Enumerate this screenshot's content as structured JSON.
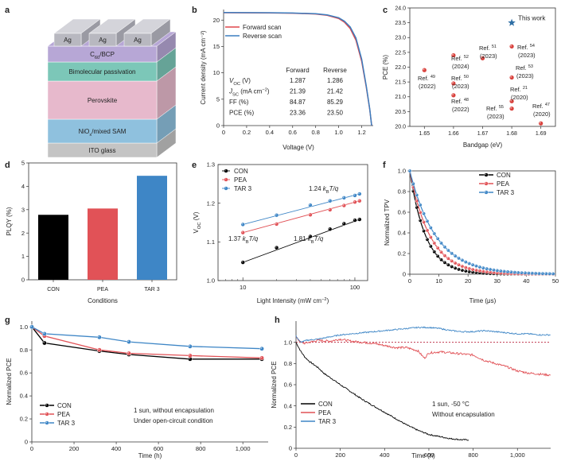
{
  "panel_letters": [
    "a",
    "b",
    "c",
    "d",
    "e",
    "f",
    "g",
    "h"
  ],
  "device_stack": {
    "layers": [
      "Ag",
      "C60/BCP",
      "Bimolecular passivation",
      "Perovskite",
      "NiOx/mixed SAM",
      "ITO glass"
    ],
    "electrodes": [
      "Ag",
      "Ag",
      "Ag"
    ],
    "colors": {
      "ag": "#b8b8c0",
      "c60": "#b7a7d6",
      "bimol": "#7cc7b8",
      "perov": "#e7b9cc",
      "nio": "#8fc1de",
      "ito": "#c4c4c4"
    }
  },
  "chart_data": [
    {
      "panel": "b",
      "type": "line",
      "xlabel": "Voltage (V)",
      "ylabel": "Current density (mA cm⁻²)",
      "xlim": [
        0,
        1.3
      ],
      "ylim": [
        0,
        22
      ],
      "xticks": [
        "0",
        "0.2",
        "0.4",
        "0.6",
        "0.8",
        "1.0",
        "1.2"
      ],
      "yticks": [
        "0",
        "5",
        "10",
        "15",
        "20"
      ],
      "legend_position": "top-right",
      "series": [
        {
          "name": "Forward scan",
          "color": "#e0474c",
          "x": [
            0,
            0.2,
            0.4,
            0.6,
            0.8,
            0.9,
            1.0,
            1.05,
            1.1,
            1.15,
            1.2,
            1.24,
            1.27,
            1.287
          ],
          "y": [
            21.39,
            21.38,
            21.35,
            21.3,
            21.15,
            20.9,
            20.3,
            19.6,
            18.4,
            16.2,
            12.2,
            7.3,
            3.0,
            0
          ]
        },
        {
          "name": "Reverse scan",
          "color": "#3b7fc0",
          "x": [
            0,
            0.2,
            0.4,
            0.6,
            0.8,
            0.9,
            1.0,
            1.05,
            1.1,
            1.15,
            1.2,
            1.24,
            1.27,
            1.286
          ],
          "y": [
            21.42,
            21.41,
            21.39,
            21.34,
            21.2,
            20.98,
            20.45,
            19.8,
            18.7,
            16.6,
            12.6,
            7.5,
            3.1,
            0
          ]
        }
      ],
      "table": {
        "headers": [
          "",
          "Forward",
          "Reverse"
        ],
        "rows": [
          [
            "V_OC (V)",
            "1.287",
            "1.286"
          ],
          [
            "J_SC (mA cm⁻²)",
            "21.39",
            "21.42"
          ],
          [
            "FF (%)",
            "84.87",
            "85.29"
          ],
          [
            "PCE (%)",
            "23.36",
            "23.50"
          ]
        ]
      }
    },
    {
      "panel": "c",
      "type": "scatter",
      "xlabel": "Bandgap (eV)",
      "ylabel": "PCE (%)",
      "xlim": [
        1.645,
        1.695
      ],
      "ylim": [
        20.0,
        24.0
      ],
      "xticks": [
        "1.65",
        "1.66",
        "1.67",
        "1.68",
        "1.69"
      ],
      "yticks": [
        "20.0",
        "20.5",
        "21.0",
        "21.5",
        "22.0",
        "22.5",
        "23.0",
        "23.5",
        "24.0"
      ],
      "this_work": {
        "x": 1.68,
        "y": 23.5,
        "label": "This work",
        "color": "#2f6fa5"
      },
      "points": [
        {
          "x": 1.65,
          "y": 21.9,
          "label": "Ref. 49 (2022)"
        },
        {
          "x": 1.66,
          "y": 22.4,
          "label": "Ref. 52 (2024)"
        },
        {
          "x": 1.66,
          "y": 21.45,
          "label": "Ref. 50 (2023)"
        },
        {
          "x": 1.66,
          "y": 21.05,
          "label": "Ref. 48 (2022)"
        },
        {
          "x": 1.67,
          "y": 22.3,
          "label": "Ref. 51 (2023)"
        },
        {
          "x": 1.68,
          "y": 22.7,
          "label": "Ref. 54 (2023)"
        },
        {
          "x": 1.68,
          "y": 21.65,
          "label": "Ref. 53 (2023)"
        },
        {
          "x": 1.68,
          "y": 20.85,
          "label": "Ref. 21 (2020)"
        },
        {
          "x": 1.68,
          "y": 20.6,
          "label": "Ref. 55 (2023)"
        },
        {
          "x": 1.69,
          "y": 20.1,
          "label": "Ref. 47 (2020)"
        }
      ],
      "color": "#d9413c"
    },
    {
      "panel": "d",
      "type": "bar",
      "xlabel": "Conditions",
      "ylabel": "PLQY (%)",
      "ylim": [
        0,
        5
      ],
      "yticks": [
        "0",
        "1",
        "2",
        "3",
        "4",
        "5"
      ],
      "categories": [
        "CON",
        "PEA",
        "TAR 3"
      ],
      "values": [
        2.78,
        3.05,
        4.45
      ],
      "colors": [
        "#000000",
        "#e15257",
        "#3e86c6"
      ]
    },
    {
      "panel": "e",
      "type": "scatter",
      "xlabel": "Light intensity (mW cm⁻²)",
      "ylabel": "V_OC (V)",
      "xscale": "log",
      "xlim": [
        6,
        130
      ],
      "ylim": [
        1.0,
        1.3
      ],
      "xticks": [
        "10",
        "100"
      ],
      "yticks": [
        "1.0",
        "1.1",
        "1.2",
        "1.3"
      ],
      "legend_position": "top-left",
      "annotations": [
        "1.24 k_BT/q",
        "1.37 k_BT/q",
        "1.81 k_BT/q"
      ],
      "series": [
        {
          "name": "CON",
          "color": "#000000",
          "x": [
            10,
            20,
            40,
            60,
            80,
            100,
            110
          ],
          "y": [
            1.047,
            1.085,
            1.114,
            1.133,
            1.147,
            1.156,
            1.158
          ]
        },
        {
          "name": "PEA",
          "color": "#e15257",
          "x": [
            10,
            20,
            40,
            60,
            80,
            100,
            110
          ],
          "y": [
            1.124,
            1.146,
            1.17,
            1.183,
            1.194,
            1.203,
            1.206
          ]
        },
        {
          "name": "TAR 3",
          "color": "#3e86c6",
          "x": [
            10,
            20,
            40,
            60,
            80,
            100,
            110
          ],
          "y": [
            1.145,
            1.169,
            1.195,
            1.206,
            1.214,
            1.22,
            1.224
          ]
        }
      ]
    },
    {
      "panel": "f",
      "type": "line",
      "xlabel": "Time (μs)",
      "ylabel": "Normalized TPV",
      "xlim": [
        0,
        50
      ],
      "ylim": [
        0,
        1.0
      ],
      "xticks": [
        "0",
        "10",
        "20",
        "30",
        "40",
        "50"
      ],
      "yticks": [
        "0",
        "0.2",
        "0.4",
        "0.6",
        "0.8",
        "1.0"
      ],
      "legend_position": "top-right",
      "series": [
        {
          "name": "CON",
          "color": "#000000",
          "tau": 5.5
        },
        {
          "name": "PEA",
          "color": "#e15257",
          "tau": 7.0
        },
        {
          "name": "TAR 3",
          "color": "#3e86c6",
          "tau": 9.0
        }
      ]
    },
    {
      "panel": "g",
      "type": "line",
      "xlabel": "Time (h)",
      "ylabel": "Normalized PCE",
      "xlim": [
        0,
        1120
      ],
      "ylim": [
        0,
        1.05
      ],
      "xticks": [
        "0",
        "200",
        "400",
        "600",
        "800",
        "1,000"
      ],
      "yticks": [
        "0",
        "0.2",
        "0.4",
        "0.6",
        "0.8",
        "1.0"
      ],
      "legend_position": "bottom-left",
      "annotations": [
        "1 sun, without encapsulation",
        "Under open-circuit condition"
      ],
      "series": [
        {
          "name": "CON",
          "color": "#000000",
          "x": [
            0,
            60,
            320,
            460,
            750,
            1090
          ],
          "y": [
            1.0,
            0.86,
            0.79,
            0.76,
            0.72,
            0.72
          ]
        },
        {
          "name": "PEA",
          "color": "#e15257",
          "x": [
            0,
            60,
            320,
            460,
            750,
            1090
          ],
          "y": [
            1.0,
            0.92,
            0.8,
            0.77,
            0.75,
            0.73
          ]
        },
        {
          "name": "TAR 3",
          "color": "#3e86c6",
          "x": [
            0,
            60,
            320,
            460,
            750,
            1090
          ],
          "y": [
            1.0,
            0.94,
            0.91,
            0.87,
            0.83,
            0.81
          ]
        }
      ]
    },
    {
      "panel": "h",
      "type": "line",
      "xlabel": "Time (h)",
      "ylabel": "Normalized PCE",
      "xlim": [
        0,
        1150
      ],
      "ylim": [
        0,
        1.2
      ],
      "xticks": [
        "0",
        "200",
        "400",
        "600",
        "800",
        "1,000"
      ],
      "yticks": [
        "0",
        "0.2",
        "0.4",
        "0.6",
        "0.8",
        "1.0"
      ],
      "legend_position": "bottom-left",
      "annotations": [
        "1 sun, -50 °C",
        "Without encapsulation"
      ],
      "reference_line": 1.0,
      "series": [
        {
          "name": "CON",
          "color": "#000000",
          "x": [
            0,
            20,
            40,
            60,
            80,
            100,
            110,
            130,
            160,
            200,
            250,
            300,
            350,
            400,
            450,
            500,
            550,
            600,
            650,
            700,
            750,
            780
          ],
          "y": [
            1.0,
            0.92,
            0.86,
            0.82,
            0.79,
            0.76,
            0.74,
            0.7,
            0.66,
            0.6,
            0.53,
            0.46,
            0.4,
            0.34,
            0.28,
            0.22,
            0.17,
            0.13,
            0.11,
            0.09,
            0.08,
            0.08
          ]
        },
        {
          "name": "PEA",
          "color": "#e15257",
          "x": [
            0,
            20,
            40,
            60,
            100,
            150,
            200,
            250,
            300,
            350,
            400,
            450,
            500,
            550,
            580,
            600,
            650,
            700,
            750,
            800,
            850,
            900,
            950,
            1000,
            1050,
            1100,
            1150
          ],
          "y": [
            1.05,
            1.0,
            0.99,
            1.0,
            1.02,
            1.01,
            1.03,
            1.01,
            1.0,
            0.99,
            0.97,
            0.95,
            0.95,
            0.92,
            0.85,
            0.9,
            0.91,
            0.9,
            0.89,
            0.88,
            0.83,
            0.8,
            0.77,
            0.73,
            0.71,
            0.7,
            0.69
          ]
        },
        {
          "name": "TAR 3",
          "color": "#3e86c6",
          "x": [
            0,
            20,
            50,
            100,
            150,
            200,
            250,
            300,
            350,
            400,
            450,
            500,
            550,
            600,
            650,
            700,
            750,
            800,
            850,
            900,
            950,
            1000,
            1050,
            1100,
            1150
          ],
          "y": [
            1.06,
            1.0,
            1.02,
            1.03,
            1.05,
            1.07,
            1.08,
            1.09,
            1.1,
            1.11,
            1.12,
            1.13,
            1.14,
            1.14,
            1.13,
            1.11,
            1.1,
            1.1,
            1.11,
            1.1,
            1.09,
            1.08,
            1.08,
            1.07,
            1.07
          ]
        }
      ]
    }
  ]
}
